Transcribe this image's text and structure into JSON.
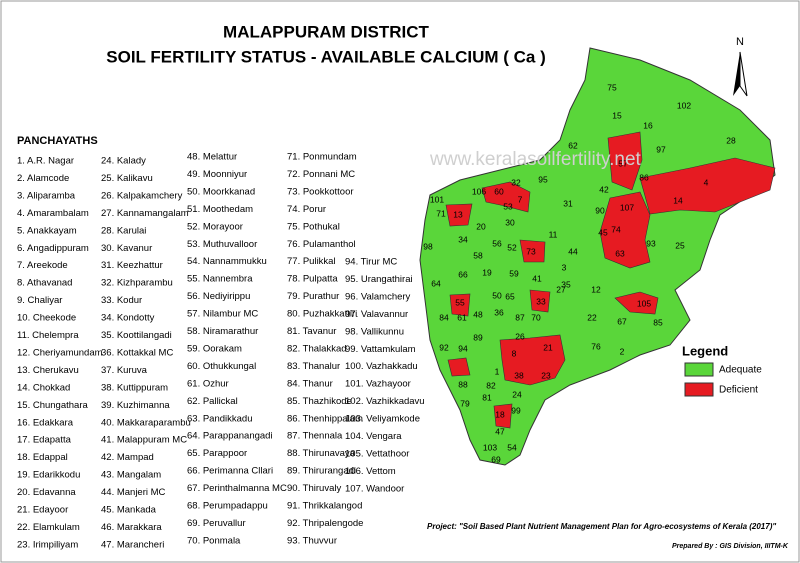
{
  "title": [
    "MALAPPURAM DISTRICT",
    "SOIL FERTILITY STATUS - AVAILABLE CALCIUM ( Ca )"
  ],
  "watermark": "www.keralasoilfertility.net",
  "north": "N",
  "panchayaths": {
    "heading": "PANCHAYATHS",
    "items": [
      "1. A.R. Nagar",
      "2. Alamcode",
      "3. Aliparamba",
      "4. Amarambalam",
      "5. Anakkayam",
      "6. Angadippuram",
      "7. Areekode",
      "8. Athavanad",
      "9. Chaliyar",
      "10. Cheekode",
      "11. Chelempra",
      "12. Cheriyamundam",
      "13. Cherukavu",
      "14. Chokkad",
      "15. Chungathara",
      "16. Edakkara",
      "17. Edapatta",
      "18. Edappal",
      "19. Edarikkodu",
      "20. Edavanna",
      "21. Edayoor",
      "22. Elamkulam",
      "23. Irimpiliyam",
      "24. Kalady",
      "25. Kalikavu",
      "26. Kalpakamchery",
      "27. Kannamangalam",
      "28. Karulai",
      "30. Kavanur",
      "31. Keezhattur",
      "32. Kizhparambu",
      "33. Kodur",
      "34. Kondotty",
      "35. Koottilangadi",
      "36. Kottakkal  MC",
      "37. Kuruva",
      "38. Kuttippuram",
      "39. Kuzhimanna",
      "40. Makkaraparambu",
      "41. Malappuram MC",
      "42. Mampad",
      "43. Mangalam",
      "44. Manjeri MC",
      "45. Mankada",
      "46. Marakkara",
      "47. Marancheri",
      "48. Melattur",
      "49. Moonniyur",
      "50. Moorkkanad",
      "51. Moothedam",
      "52. Morayoor",
      "53. Muthuvalloor",
      "54. Nannammukku",
      "55. Nannembra",
      "56. Nediyirippu",
      "57. Nilambur MC",
      "58. Niramarathur",
      "59. Oorakam",
      "60. Othukkungal",
      "61. Ozhur",
      "62. Pallickal",
      "63. Pandikkadu",
      "64. Parappanangadi",
      "65. Parappoor",
      "66. Perimanna Cllari",
      "67. Perinthalmanna MC",
      "68. Perumpadappu",
      "69. Peruvallur",
      "70. Ponmala",
      "71. Ponmundam",
      "72. Ponnani MC",
      "73. Pookkottoor",
      "74. Porur",
      "75. Pothukal",
      "76. Pulamanthol",
      "77. Pulikkal",
      "78. Pulpatta",
      "79. Purathur",
      "80. Puzhakkattiri",
      "81. Tavanur",
      "82. Thalakkad",
      "83. Thanalur",
      "84. Thanur",
      "85. Thazhikode",
      "86. Thenhippalam",
      "87. Thennala",
      "88. Thirunavaya",
      "89. Thirurangadi",
      "90. Thiruvaly",
      "91. Thrikkalangod",
      "92. Thripalengode",
      "93. Thuvvur",
      "94. Tirur MC",
      "95. Urangathirai",
      "96. Valamchery",
      "97. Valavannur",
      "98. Vallikunnu",
      "99. Vattamkulam",
      "100. Vazhakkadu",
      "101. Vazhayoor",
      "102. Vazhikkadavu",
      "103. Veliyamkode",
      "104. Vengara",
      "105. Vettathoor",
      "106. Vettom",
      "107. Wandoor"
    ]
  },
  "map_labels": [
    "75",
    "102",
    "15",
    "16",
    "28",
    "62",
    "57",
    "97",
    "4",
    "32",
    "106",
    "60",
    "95",
    "42",
    "86",
    "14",
    "101",
    "71",
    "13",
    "53",
    "7",
    "30",
    "31",
    "90",
    "107",
    "93",
    "25",
    "74",
    "98",
    "20",
    "56",
    "52",
    "73",
    "44",
    "45",
    "63",
    "11",
    "34",
    "58",
    "64",
    "66",
    "59",
    "41",
    "3",
    "19",
    "12",
    "27",
    "50",
    "55",
    "65",
    "33",
    "35",
    "22",
    "105",
    "84",
    "61",
    "48",
    "36",
    "87",
    "70",
    "67",
    "85",
    "89",
    "26",
    "92",
    "94",
    "8",
    "21",
    "76",
    "2",
    "1",
    "82",
    "38",
    "23",
    "88",
    "79",
    "81",
    "24",
    "99",
    "47",
    "18",
    "103",
    "54",
    "69"
  ],
  "legend": {
    "title": "Legend",
    "items": [
      {
        "label": "Adequate",
        "color": "#5ad63a"
      },
      {
        "label": "Deficient",
        "color": "#e61b22"
      }
    ]
  },
  "project": "Project: \"Soil Based Plant Nutrient Management Plan for Agro-ecosystems of Kerala (2017)\"",
  "credits": "Prepared By : GIS Division, IIITM-K"
}
